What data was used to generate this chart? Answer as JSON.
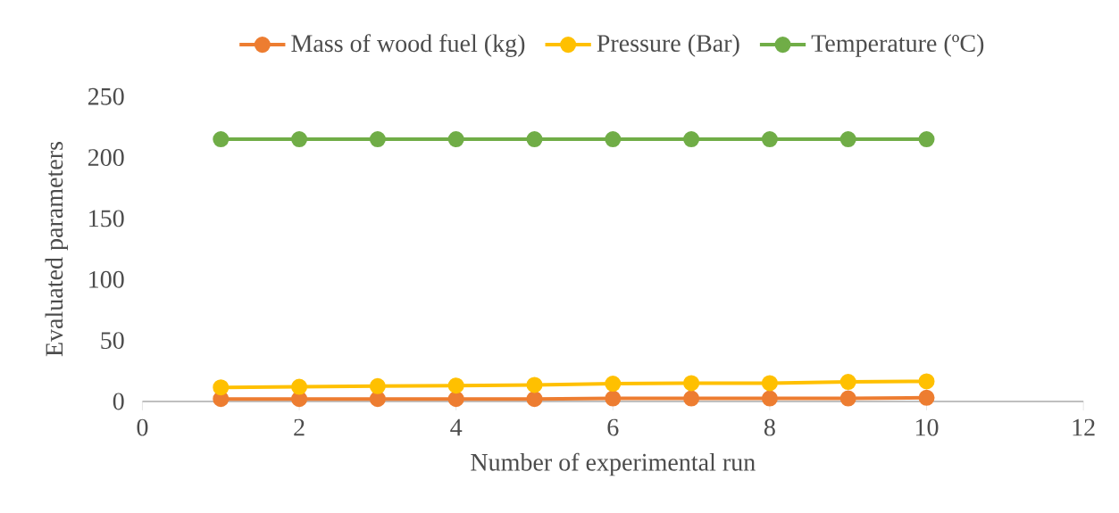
{
  "chart_data": {
    "type": "line",
    "xlabel": "Number of experimental run",
    "ylabel": "Evaluated parameters",
    "x": [
      1,
      2,
      3,
      4,
      5,
      6,
      7,
      8,
      9,
      10
    ],
    "series": [
      {
        "name": "Mass of wood fuel (kg)",
        "color": "#ed7d31",
        "values": [
          2,
          2,
          2,
          2,
          2,
          2.5,
          2.5,
          2.5,
          2.5,
          3
        ]
      },
      {
        "name": "Pressure (Bar)",
        "color": "#ffc000",
        "values": [
          11.5,
          12,
          12.5,
          13,
          13.5,
          14.5,
          15,
          15,
          16,
          16.5
        ]
      },
      {
        "name": "Temperature (ºC)",
        "color": "#70ad47",
        "values": [
          215,
          215,
          215,
          215,
          215,
          215,
          215,
          215,
          215,
          215
        ]
      }
    ],
    "xlim": [
      0,
      12
    ],
    "xticks": [
      0,
      2,
      4,
      6,
      8,
      10,
      12
    ],
    "ylim": [
      0,
      250
    ],
    "yticks": [
      0,
      50,
      100,
      150,
      200,
      250
    ],
    "grid": false,
    "legend": "top",
    "marker": "circle",
    "line_style": "solid"
  }
}
